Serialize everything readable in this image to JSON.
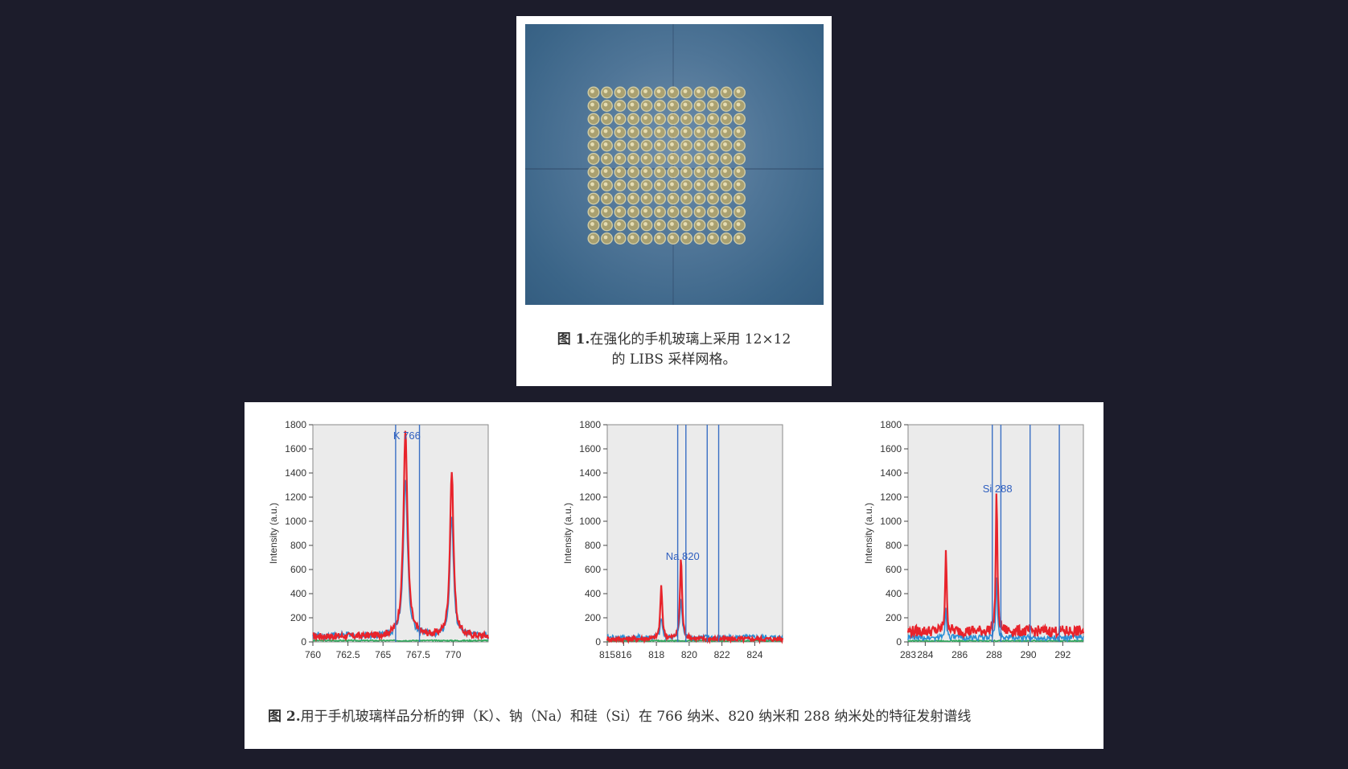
{
  "figure1": {
    "caption_label": "图 1.",
    "caption_line1": "在强化的手机玻璃上采用 12×12",
    "caption_line2": "的 LIBS 采样网格。"
  },
  "figure2": {
    "caption_label": "图 2.",
    "caption_text": "用于手机玻璃样品分析的钾（K）、钠（Na）和硅（Si）在 766 纳米、820 纳米和 288 纳米处的特征发射谱线"
  },
  "colors": {
    "red_series": "#e8232b",
    "blue_series": "#2a8fd6",
    "green_series": "#2ca85a",
    "marker_lines": "#3a6fc4",
    "plot_bg": "#ebebeb"
  },
  "chart_data": [
    {
      "type": "line",
      "ylabel": "Intensity (a.u.)",
      "ylim": [
        0,
        1800
      ],
      "yticks": [
        "0",
        "200",
        "400",
        "600",
        "800",
        "1000",
        "1200",
        "1400",
        "1600",
        "1800"
      ],
      "xlim": [
        760,
        772.5
      ],
      "xticks": [
        760,
        762.5,
        765,
        767.5,
        770
      ],
      "xtick_labels": [
        "760",
        "762.5",
        "765",
        "767.5",
        "770"
      ],
      "marker_lines": [
        765.9,
        767.6
      ],
      "annotation": {
        "text": "K 766",
        "x": 766.7,
        "y": 1680
      },
      "series": [
        {
          "color": "red",
          "peaks": [
            {
              "x": 766.6,
              "height": 1690,
              "width": 0.35
            },
            {
              "x": 769.9,
              "height": 1370,
              "width": 0.3
            }
          ],
          "baseline": 40
        },
        {
          "color": "blue",
          "peaks": [
            {
              "x": 766.6,
              "height": 1300,
              "width": 0.35
            },
            {
              "x": 769.9,
              "height": 1000,
              "width": 0.3
            }
          ],
          "baseline": 45
        },
        {
          "color": "green",
          "peaks": [],
          "baseline": 10
        }
      ]
    },
    {
      "type": "line",
      "ylabel": "Intensity (a.u.)",
      "ylim": [
        0,
        1800
      ],
      "yticks": [
        "0",
        "200",
        "400",
        "600",
        "800",
        "1000",
        "1200",
        "1400",
        "1600",
        "1800"
      ],
      "xlim": [
        815,
        825.7
      ],
      "xticks": [
        815,
        816,
        818,
        820,
        822,
        824
      ],
      "xtick_labels": [
        "815",
        "816",
        "818",
        "820",
        "822",
        "824"
      ],
      "marker_lines": [
        819.3,
        819.8,
        821.1,
        821.8
      ],
      "annotation": {
        "text": "Na 820",
        "x": 819.6,
        "y": 680
      },
      "series": [
        {
          "color": "red",
          "peaks": [
            {
              "x": 818.3,
              "height": 430,
              "width": 0.15
            },
            {
              "x": 819.5,
              "height": 680,
              "width": 0.15
            }
          ],
          "baseline": 20
        },
        {
          "color": "blue",
          "peaks": [
            {
              "x": 818.3,
              "height": 160,
              "width": 0.15
            },
            {
              "x": 819.5,
              "height": 340,
              "width": 0.15
            }
          ],
          "baseline": 30
        },
        {
          "color": "green",
          "peaks": [],
          "baseline": 8
        }
      ]
    },
    {
      "type": "line",
      "ylabel": "Intensity (a.u.)",
      "ylim": [
        0,
        1800
      ],
      "yticks": [
        "0",
        "200",
        "400",
        "600",
        "800",
        "1000",
        "1200",
        "1400",
        "1600",
        "1800"
      ],
      "xlim": [
        283,
        293.2
      ],
      "xticks": [
        283,
        284,
        286,
        288,
        290,
        292
      ],
      "xtick_labels": [
        "283",
        "284",
        "286",
        "288",
        "290",
        "292"
      ],
      "marker_lines": [
        287.9,
        288.4,
        290.1,
        291.8
      ],
      "annotation": {
        "text": "Si 288",
        "x": 288.2,
        "y": 1240
      },
      "series": [
        {
          "color": "red",
          "peaks": [
            {
              "x": 285.2,
              "height": 690,
              "width": 0.1
            },
            {
              "x": 288.15,
              "height": 1220,
              "width": 0.1
            }
          ],
          "baseline": 80
        },
        {
          "color": "blue",
          "peaks": [
            {
              "x": 285.2,
              "height": 260,
              "width": 0.1
            },
            {
              "x": 288.15,
              "height": 540,
              "width": 0.1
            }
          ],
          "baseline": 30
        },
        {
          "color": "green",
          "peaks": [],
          "baseline": 8
        }
      ]
    }
  ]
}
